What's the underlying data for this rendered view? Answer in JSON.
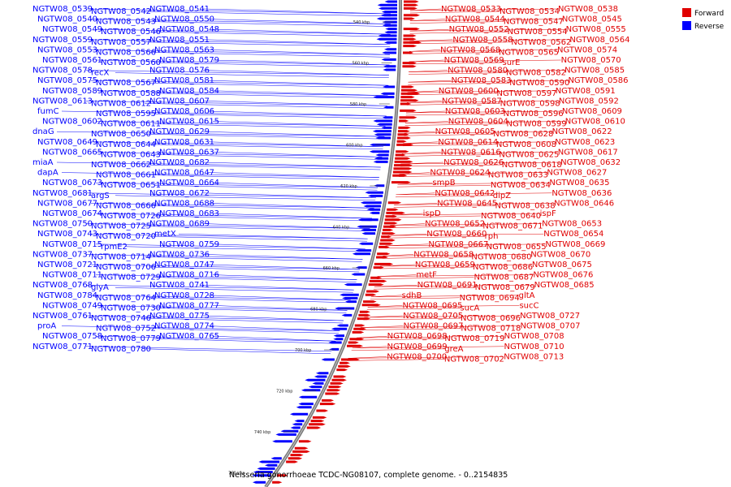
{
  "caption": "Neisseria gonorrhoeae TCDC-NG08107, complete genome. - 0..2154835",
  "legend": {
    "forward": {
      "label": "Forward",
      "color": "#e00000"
    },
    "reverse": {
      "label": "Reverse",
      "color": "#0000ff"
    }
  },
  "ticks": [
    "540 kbp",
    "560 kbp",
    "580 kbp",
    "600 kbp",
    "620 kbp",
    "640 kbp",
    "660 kbp",
    "680 kbp",
    "700 kbp",
    "720 kbp",
    "740 kbp",
    "760 kbp"
  ],
  "reverse_labels": [
    "NGTW08_0539",
    "NGTW08_0542",
    "NGTW08_0541",
    "NGTW08_0540",
    "NGTW08_0543",
    "NGTW08_0550",
    "NGTW08_0549",
    "NGTW08_0546",
    "NGTW08_0548",
    "NGTW08_0559",
    "NGTW08_0557",
    "NGTW08_0551",
    "NGTW08_0553",
    "NGTW08_0566",
    "NGTW08_0563",
    "NGTW08_0561",
    "NGTW08_0560",
    "NGTW08_0579",
    "NGTW08_0578",
    "recX",
    "NGTW08_0576",
    "NGTW08_0575",
    "NGTW08_0567",
    "NGTW08_0581",
    "NGTW08_0589",
    "NGTW08_0588",
    "NGTW08_0584",
    "NGTW08_0613",
    "NGTW08_0612",
    "NGTW08_0607",
    "fumC",
    "NGTW08_0595",
    "NGTW08_0606",
    "NGTW08_0602",
    "NGTW08_0611",
    "NGTW08_0615",
    "dnaG",
    "NGTW08_0650",
    "NGTW08_0629",
    "NGTW08_0649",
    "NGTW08_0644",
    "NGTW08_0631",
    "NGTW08_0665",
    "NGTW08_0643",
    "NGTW08_0637",
    "miaA",
    "NGTW08_0662",
    "NGTW08_0682",
    "dapA",
    "NGTW08_0661",
    "NGTW08_0647",
    "NGTW08_0673",
    "NGTW08_0651",
    "NGTW08_0664",
    "NGTW08_0681",
    "argS",
    "NGTW08_0672",
    "NGTW08_0677",
    "NGTW08_0666",
    "NGTW08_0688",
    "NGTW08_0674",
    "NGTW08_0726",
    "NGTW08_0683",
    "NGTW08_0750",
    "NGTW08_0725",
    "NGTW08_0689",
    "NGTW08_0743",
    "NGTW08_0720",
    "metX",
    "NGTW08_0715",
    "rpmE2",
    "NGTW08_0759",
    "NGTW08_0737",
    "NGTW08_0714",
    "NGTW08_0736",
    "NGTW08_0721",
    "NGTW08_0706",
    "NGTW08_0747",
    "NGTW08_0711",
    "NGTW08_0729",
    "NGTW08_0716",
    "NGTW08_0768",
    "glyA",
    "NGTW08_0741",
    "NGTW08_0784",
    "NGTW08_0764",
    "NGTW08_0728",
    "NGTW08_0749",
    "NGTW08_0730",
    "NGTW08_0777",
    "NGTW08_0761",
    "NGTW08_0746",
    "NGTW08_0775",
    "proA",
    "NGTW08_0752",
    "NGTW08_0774",
    "NGTW08_0758",
    "NGTW08_0779",
    "NGTW08_0765",
    "NGTW08_0771",
    "NGTW08_0780"
  ],
  "forward_labels": [
    "NGTW08_0533",
    "NGTW08_0534",
    "NGTW08_0538",
    "NGTW08_0544",
    "NGTW08_0547",
    "NGTW08_0545",
    "NGTW08_0552",
    "NGTW08_0554",
    "NGTW08_0555",
    "NGTW08_0558",
    "NGTW08_0562",
    "NGTW08_0564",
    "NGTW08_0568",
    "NGTW08_0565",
    "NGTW08_0574",
    "NGTW08_0569",
    "surE",
    "NGTW08_0570",
    "NGTW08_0580",
    "NGTW08_0582",
    "NGTW08_0585",
    "NGTW08_0583",
    "NGTW08_0590",
    "NGTW08_0586",
    "NGTW08_0600",
    "NGTW08_0597",
    "NGTW08_0591",
    "NGTW08_0587",
    "NGTW08_0598",
    "NGTW08_0592",
    "NGTW08_0603",
    "NGTW08_0596",
    "NGTW08_0609",
    "NGTW08_0604",
    "NGTW08_0599",
    "NGTW08_0610",
    "NGTW08_0605",
    "NGTW08_0628",
    "NGTW08_0622",
    "NGTW08_0614",
    "NGTW08_0608",
    "NGTW08_0623",
    "NGTW08_0616",
    "NGTW08_0625",
    "NGTW08_0617",
    "NGTW08_0626",
    "NGTW08_0618",
    "NGTW08_0632",
    "NGTW08_0624",
    "NGTW08_0633",
    "NGTW08_0627",
    "smpB",
    "NGTW08_0634",
    "NGTW08_0635",
    "NGTW08_0642",
    "dipZ",
    "NGTW08_0636",
    "NGTW08_0645",
    "NGTW08_0638",
    "NGTW08_0646",
    "ispD",
    "NGTW08_0640",
    "ispF",
    "NGTW08_0652",
    "NGTW08_0671",
    "NGTW08_0653",
    "NGTW08_0660",
    "rph",
    "NGTW08_0654",
    "NGTW08_0667",
    "NGTW08_0655",
    "NGTW08_0669",
    "NGTW08_0658",
    "NGTW08_0680",
    "NGTW08_0670",
    "NGTW08_0659",
    "NGTW08_0686",
    "NGTW08_0675",
    "metF",
    "NGTW08_0687",
    "NGTW08_0676",
    "NGTW08_0691",
    "NGTW08_0679",
    "NGTW08_0685",
    "sdhB",
    "NGTW08_0694",
    "gltA",
    "NGTW08_0695",
    "sucA",
    "sucC",
    "NGTW08_0705",
    "NGTW08_0696",
    "NGTW08_0727",
    "NGTW08_0697",
    "NGTW08_0718",
    "NGTW08_0707",
    "NGTW08_0698",
    "NGTW08_0719",
    "NGTW08_0708",
    "NGTW08_0699",
    "greA",
    "NGTW08_0710",
    "NGTW08_0700",
    "NGTW08_0702",
    "NGTW08_0713"
  ]
}
